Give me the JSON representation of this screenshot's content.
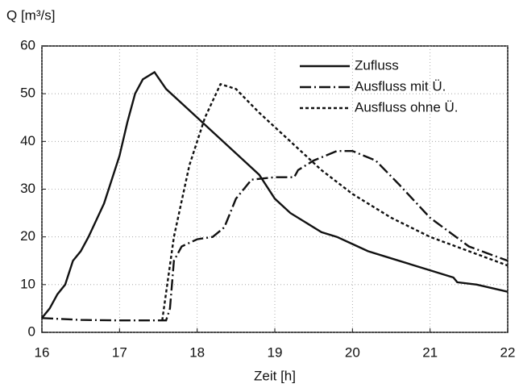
{
  "chart_data": {
    "type": "line",
    "y_label": "Q [m³/s]",
    "x_label": "Zeit [h]",
    "xlim": [
      16,
      22
    ],
    "xticks": [
      16,
      17,
      18,
      19,
      20,
      21,
      22
    ],
    "ylim": [
      0,
      60
    ],
    "yticks": [
      0,
      10,
      20,
      30,
      40,
      50,
      60
    ],
    "grid": true,
    "legend": "upper right",
    "series": [
      {
        "name": "Zufluss",
        "color": "#111111",
        "style": "solid",
        "x": [
          16,
          16.1,
          16.2,
          16.3,
          16.4,
          16.5,
          16.6,
          16.8,
          17.0,
          17.1,
          17.2,
          17.3,
          17.45,
          17.6,
          17.8,
          18.0,
          18.2,
          18.4,
          18.6,
          18.8,
          19.0,
          19.2,
          19.4,
          19.6,
          19.8,
          20.0,
          20.2,
          20.5,
          21.0,
          21.3,
          21.35,
          21.6,
          22
        ],
        "values": [
          3,
          5,
          8,
          10,
          15,
          17,
          20,
          27,
          37,
          44,
          50,
          53,
          54.5,
          51,
          48,
          45,
          42,
          39,
          36,
          33,
          28,
          25,
          23,
          21,
          20,
          18.5,
          17,
          15.5,
          13,
          11.5,
          10.5,
          10,
          8.5
        ]
      },
      {
        "name": "Ausfluss mit Ü.",
        "color": "#111111",
        "style": "dashdot",
        "x": [
          16,
          16.5,
          17,
          17.6,
          17.65,
          17.7,
          17.8,
          18.0,
          18.2,
          18.35,
          18.5,
          18.7,
          19.0,
          19.25,
          19.3,
          19.5,
          19.8,
          20.0,
          20.3,
          20.6,
          21.0,
          21.5,
          22
        ],
        "values": [
          3,
          2.6,
          2.5,
          2.5,
          5,
          15,
          18,
          19.5,
          20,
          22,
          28,
          32,
          32.5,
          32.5,
          34,
          36,
          38,
          38,
          36,
          31,
          24,
          18,
          15
        ]
      },
      {
        "name": "Ausfluss ohne Ü.",
        "color": "#111111",
        "style": "dotted",
        "x": [
          17.55,
          17.7,
          17.9,
          18.1,
          18.3,
          18.5,
          18.8,
          19.2,
          19.6,
          20.0,
          20.5,
          21.0,
          21.5,
          22
        ],
        "values": [
          2.5,
          20,
          35,
          45,
          52,
          51,
          46,
          40,
          34,
          29,
          24,
          20,
          17,
          14
        ]
      }
    ]
  }
}
